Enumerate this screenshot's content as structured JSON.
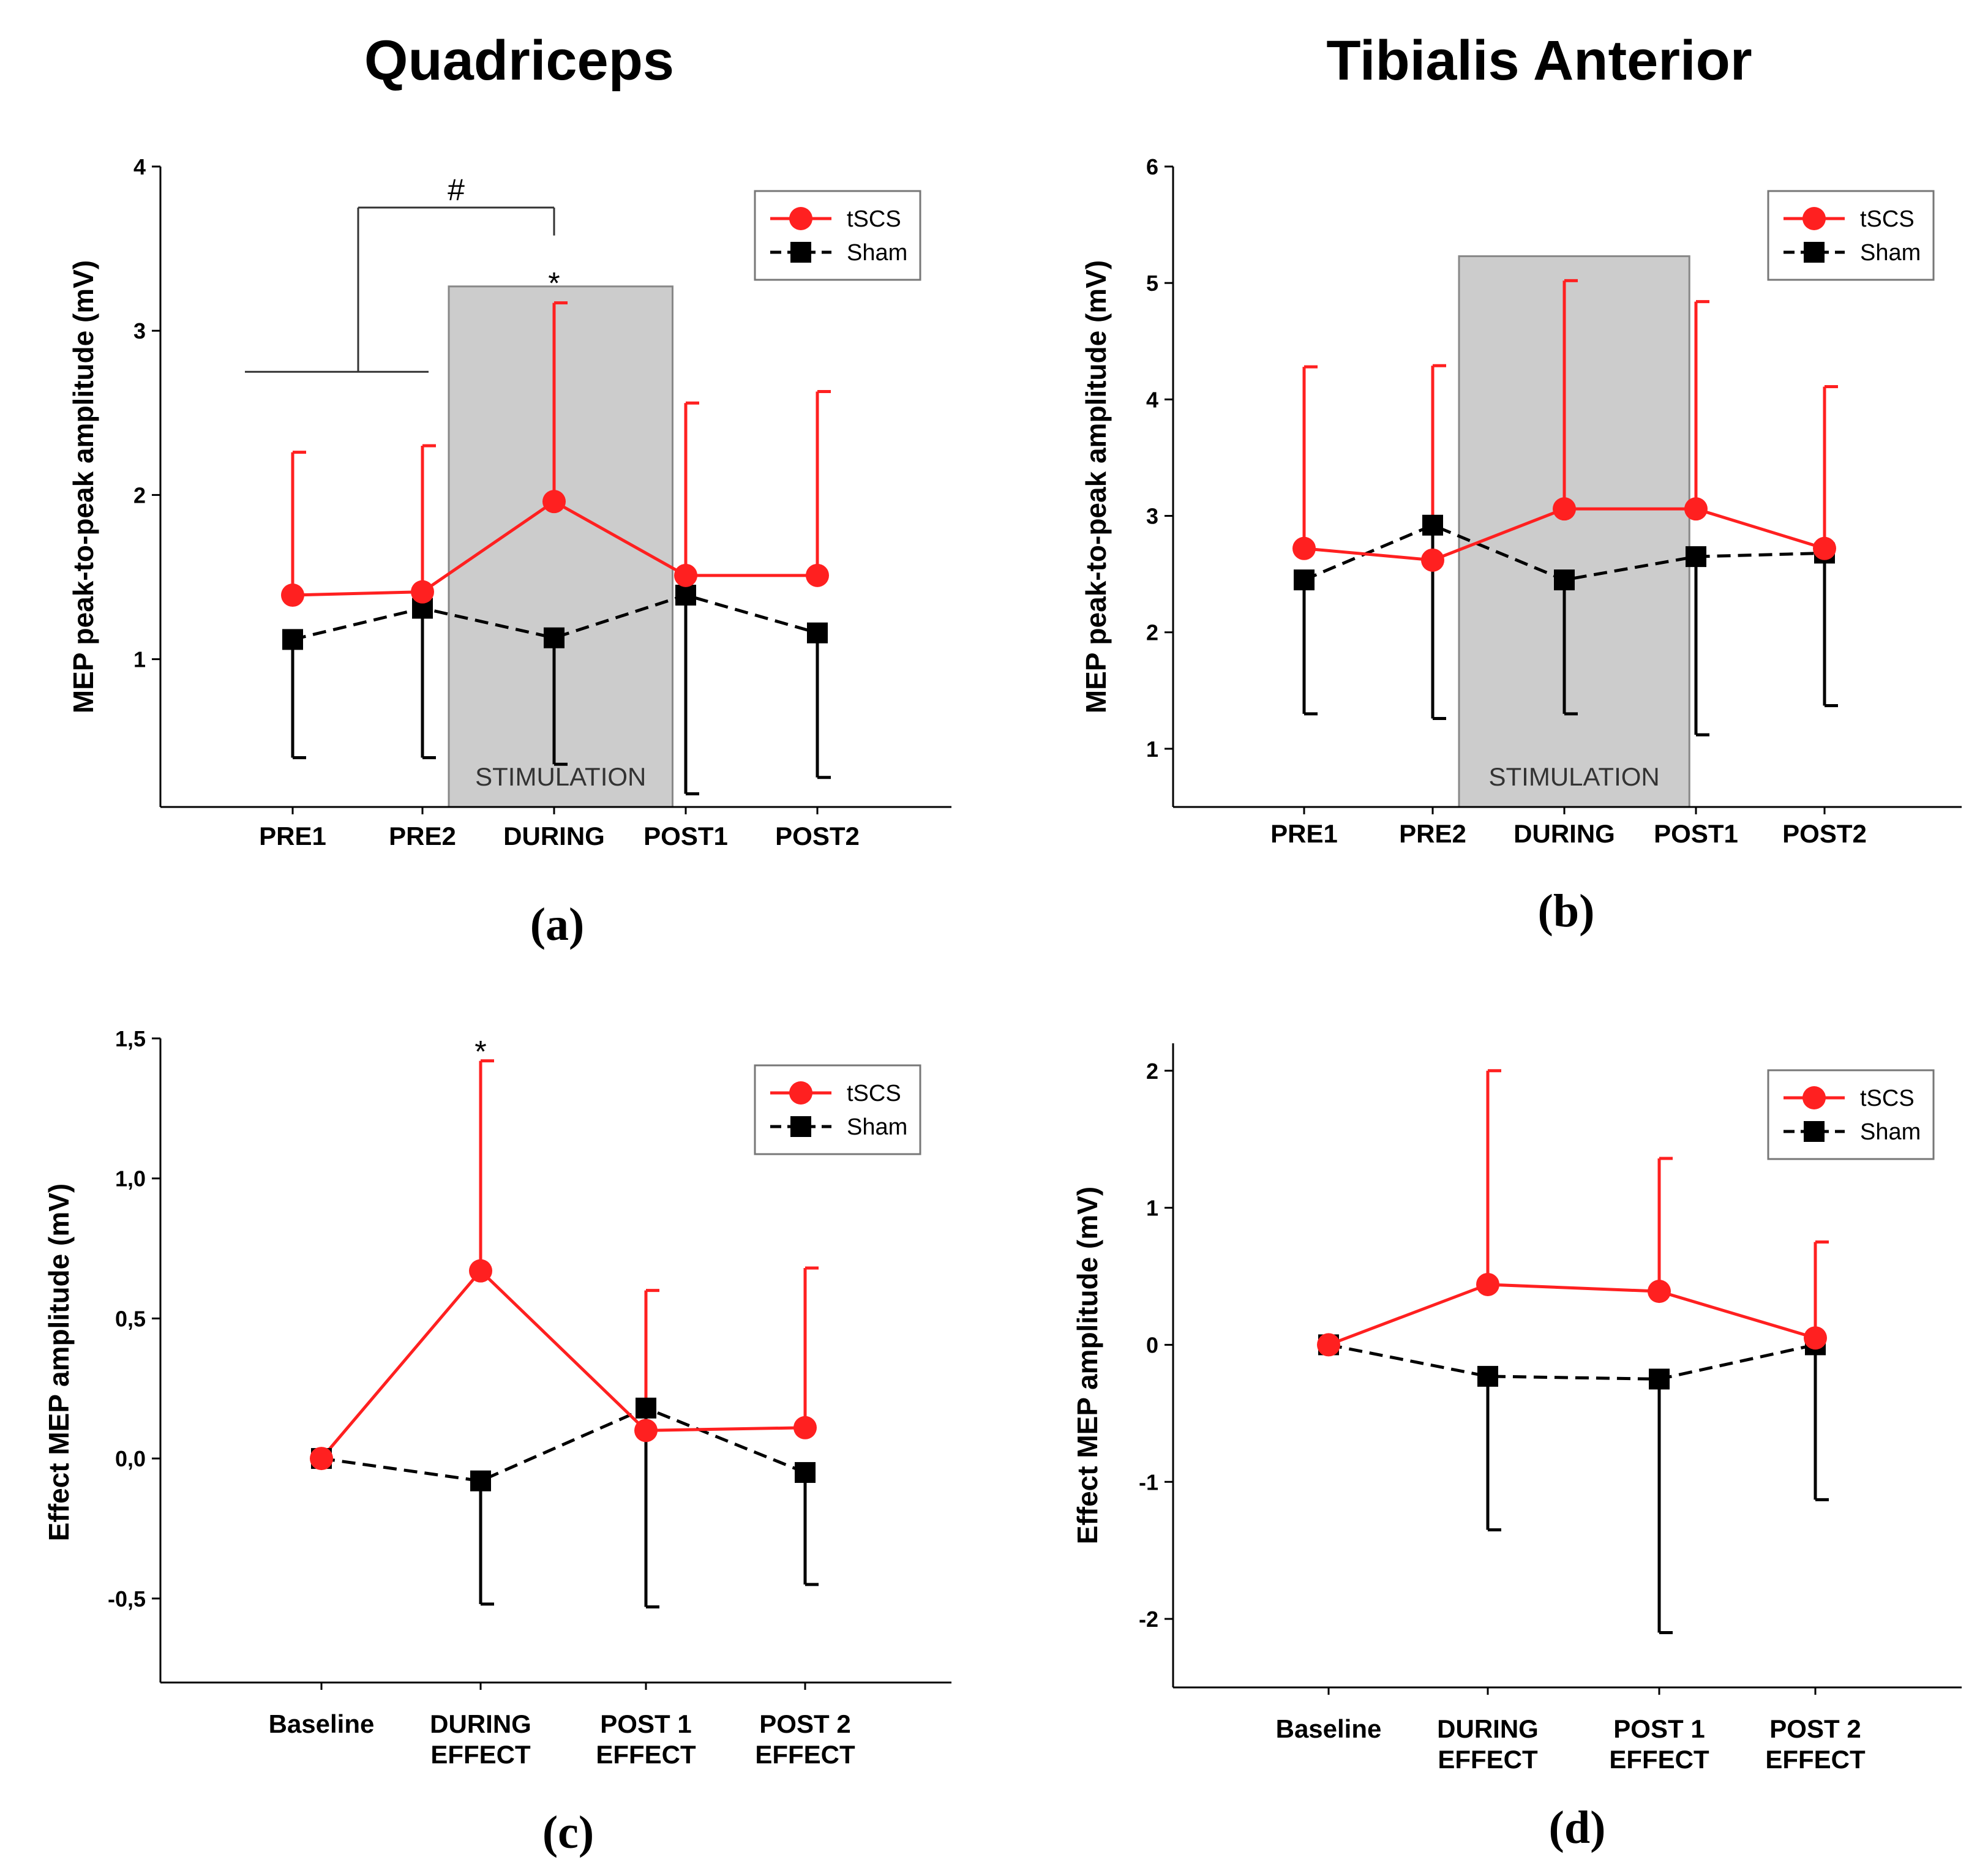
{
  "column_titles": [
    "Quadriceps",
    "Tibialis Anterior"
  ],
  "series_names": [
    "tSCS",
    "Sham"
  ],
  "colors": {
    "tscs": "#ff2020",
    "sham": "#000000",
    "stim_fill": "#cccccc",
    "stim_stroke": "#888888"
  },
  "chart_data": [
    {
      "panel": "(a)",
      "type": "line",
      "ylabel": "MEP peak-to-peak amplitude (mV)",
      "categories": [
        "PRE1",
        "PRE2",
        "DURING",
        "POST1",
        "POST2"
      ],
      "ylim": [
        0.1,
        4
      ],
      "yticks": [
        1,
        2,
        3,
        4
      ],
      "ytick_labels": [
        "1",
        "2",
        "3",
        "4"
      ],
      "stimulation_label": "STIMULATION",
      "stimulation_range": [
        1.2,
        2.9
      ],
      "stimulation_top": 3.27,
      "series": [
        {
          "name": "tSCS",
          "values": [
            1.39,
            1.41,
            1.96,
            1.51,
            1.51
          ],
          "err_upper": [
            2.26,
            2.3,
            3.17,
            2.56,
            2.63
          ]
        },
        {
          "name": "Sham",
          "values": [
            1.12,
            1.31,
            1.13,
            1.39,
            1.16
          ],
          "err_lower": [
            0.4,
            0.4,
            0.36,
            0.18,
            0.28
          ]
        }
      ],
      "annotations": [
        {
          "text": "#",
          "type": "bracket"
        },
        {
          "text": "*",
          "category_index": 2,
          "y": 3.3
        }
      ]
    },
    {
      "panel": "(b)",
      "type": "line",
      "ylabel": "MEP peak-to-peak amplitude (mV)",
      "categories": [
        "PRE1",
        "PRE2",
        "DURING",
        "POST1",
        "POST2"
      ],
      "ylim": [
        0.5,
        6
      ],
      "yticks": [
        1,
        2,
        3,
        4,
        5,
        6
      ],
      "ytick_labels": [
        "1",
        "2",
        "3",
        "4",
        "5",
        "6"
      ],
      "stimulation_label": "STIMULATION",
      "stimulation_range": [
        1.2,
        2.95
      ],
      "stimulation_top": 5.23,
      "series": [
        {
          "name": "tSCS",
          "values": [
            2.72,
            2.62,
            3.06,
            3.06,
            2.72
          ],
          "err_upper": [
            4.28,
            4.29,
            5.02,
            4.84,
            4.11
          ]
        },
        {
          "name": "Sham",
          "values": [
            2.45,
            2.92,
            2.45,
            2.65,
            2.68
          ],
          "err_lower": [
            1.3,
            1.26,
            1.3,
            1.12,
            1.37
          ]
        }
      ],
      "annotations": []
    },
    {
      "panel": "(c)",
      "type": "line",
      "ylabel": "Effect MEP amplitude (mV)",
      "categories": [
        "Baseline",
        "DURING\nEFFECT",
        "POST 1\nEFFECT",
        "POST 2\nEFFECT"
      ],
      "ylim": [
        -0.8,
        1.5
      ],
      "yticks": [
        -0.5,
        0.0,
        0.5,
        1.0,
        1.5
      ],
      "ytick_labels": [
        "-0,5",
        "0,0",
        "0,5",
        "1,0",
        "1,5"
      ],
      "series": [
        {
          "name": "tSCS",
          "values": [
            0.0,
            0.67,
            0.1,
            0.11
          ],
          "err_upper": [
            null,
            1.42,
            0.6,
            0.68
          ]
        },
        {
          "name": "Sham",
          "values": [
            0.0,
            -0.08,
            0.18,
            -0.05
          ],
          "err_lower": [
            null,
            -0.52,
            -0.53,
            -0.45
          ]
        }
      ],
      "annotations": [
        {
          "text": "*",
          "category_index": 1,
          "y": 1.46
        }
      ]
    },
    {
      "panel": "(d)",
      "type": "line",
      "ylabel": "Effect MEP amplitude (mV)",
      "categories": [
        "Baseline",
        "DURING\nEFFECT",
        "POST 1\nEFFECT",
        "POST 2\nEFFECT"
      ],
      "ylim": [
        -2.5,
        2.2
      ],
      "yticks": [
        -2,
        -1,
        0,
        1,
        2
      ],
      "ytick_labels": [
        "-2",
        "-1",
        "0",
        "1",
        "2"
      ],
      "series": [
        {
          "name": "tSCS",
          "values": [
            0.0,
            0.44,
            0.39,
            0.05
          ],
          "err_upper": [
            null,
            2.0,
            1.36,
            0.75
          ]
        },
        {
          "name": "Sham",
          "values": [
            0.0,
            -0.23,
            -0.25,
            0.0
          ],
          "err_lower": [
            null,
            -1.35,
            -2.1,
            -1.13
          ]
        }
      ],
      "annotations": []
    }
  ]
}
